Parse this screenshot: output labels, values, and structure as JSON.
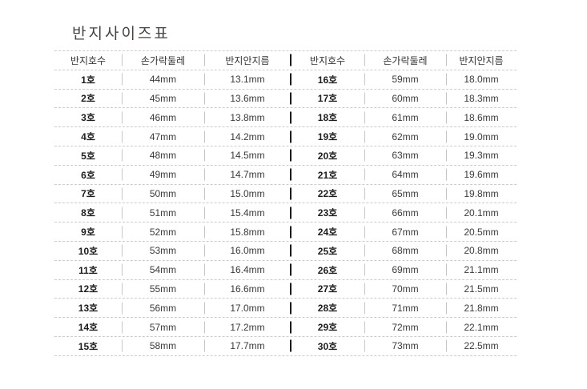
{
  "title": "반지사이즈표",
  "table": {
    "columns": [
      "반지호수",
      "손가락둘레",
      "반지안지름"
    ],
    "left_rows": [
      [
        "1호",
        "44mm",
        "13.1mm"
      ],
      [
        "2호",
        "45mm",
        "13.6mm"
      ],
      [
        "3호",
        "46mm",
        "13.8mm"
      ],
      [
        "4호",
        "47mm",
        "14.2mm"
      ],
      [
        "5호",
        "48mm",
        "14.5mm"
      ],
      [
        "6호",
        "49mm",
        "14.7mm"
      ],
      [
        "7호",
        "50mm",
        "15.0mm"
      ],
      [
        "8호",
        "51mm",
        "15.4mm"
      ],
      [
        "9호",
        "52mm",
        "15.8mm"
      ],
      [
        "10호",
        "53mm",
        "16.0mm"
      ],
      [
        "11호",
        "54mm",
        "16.4mm"
      ],
      [
        "12호",
        "55mm",
        "16.6mm"
      ],
      [
        "13호",
        "56mm",
        "17.0mm"
      ],
      [
        "14호",
        "57mm",
        "17.2mm"
      ],
      [
        "15호",
        "58mm",
        "17.7mm"
      ]
    ],
    "right_rows": [
      [
        "16호",
        "59mm",
        "18.0mm"
      ],
      [
        "17호",
        "60mm",
        "18.3mm"
      ],
      [
        "18호",
        "61mm",
        "18.6mm"
      ],
      [
        "19호",
        "62mm",
        "19.0mm"
      ],
      [
        "20호",
        "63mm",
        "19.3mm"
      ],
      [
        "21호",
        "64mm",
        "19.6mm"
      ],
      [
        "22호",
        "65mm",
        "19.8mm"
      ],
      [
        "23호",
        "66mm",
        "20.1mm"
      ],
      [
        "24호",
        "67mm",
        "20.5mm"
      ],
      [
        "25호",
        "68mm",
        "20.8mm"
      ],
      [
        "26호",
        "69mm",
        "21.1mm"
      ],
      [
        "27호",
        "70mm",
        "21.5mm"
      ],
      [
        "28호",
        "71mm",
        "21.8mm"
      ],
      [
        "29호",
        "72mm",
        "22.1mm"
      ],
      [
        "30호",
        "73mm",
        "22.5mm"
      ]
    ]
  },
  "colors": {
    "dash_line": "#cccccc",
    "light_separator": "#c6c6c6",
    "dark_divider": "#1a1a1a",
    "title_text": "#474341",
    "body_text": "#3a3a3a",
    "bold_text": "#1c1c1c",
    "background": "#ffffff"
  }
}
